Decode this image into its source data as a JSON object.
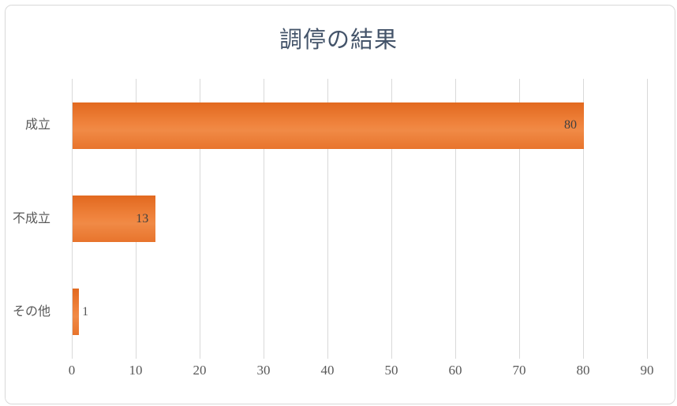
{
  "chart_data": {
    "type": "bar",
    "orientation": "horizontal",
    "title": "調停の結果",
    "categories": [
      "成立",
      "不成立",
      "その他"
    ],
    "values": [
      80,
      13,
      1
    ],
    "xlabel": "",
    "ylabel": "",
    "xlim": [
      0,
      90
    ],
    "xticks": [
      0,
      10,
      20,
      30,
      40,
      50,
      60,
      70,
      80,
      90
    ],
    "grid": true,
    "data_labels_visible": true,
    "legend": "none"
  },
  "colors": {
    "bar_fill": "#ED7D31",
    "bar_gradient_top": "#E2691F",
    "bar_gradient_mid": "#F0843E",
    "bar_gradient_bottom": "#E8742C",
    "title_text": "#44546A",
    "axis_text": "#595959",
    "data_label_text": "#404040",
    "gridline": "#D9D9D9",
    "chart_border": "#D9D9D9",
    "background": "#FFFFFF"
  }
}
